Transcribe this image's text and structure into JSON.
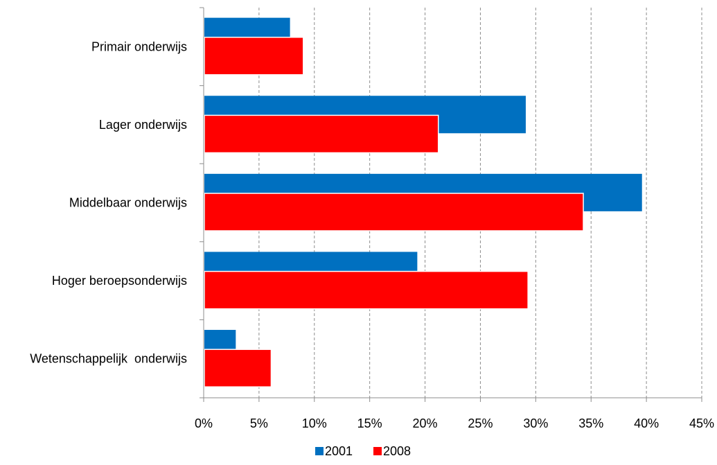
{
  "chart_data": {
    "type": "bar",
    "orientation": "horizontal",
    "categories": [
      "Primair onderwijs",
      "Lager onderwijs",
      "Middelbaar onderwijs",
      "Hoger beroepsonderwijs",
      "Wetenschappelijk  onderwijs"
    ],
    "series": [
      {
        "name": "2001",
        "color": "#0070C0",
        "values": [
          7.8,
          29.1,
          39.6,
          19.3,
          2.9
        ]
      },
      {
        "name": "2008",
        "color": "#FF0000",
        "values": [
          9.0,
          21.2,
          34.3,
          29.3,
          6.1
        ]
      }
    ],
    "xlim": [
      0,
      45
    ],
    "x_ticks": [
      0,
      5,
      10,
      15,
      20,
      25,
      30,
      35,
      40,
      45
    ],
    "x_tick_labels": [
      "0%",
      "5%",
      "10%",
      "15%",
      "20%",
      "25%",
      "30%",
      "35%",
      "40%",
      "45%"
    ],
    "grid": "vertical-dashed",
    "legend": {
      "placement": "bottom",
      "entries": [
        "2001",
        "2008"
      ]
    },
    "title": "",
    "xlabel": "",
    "ylabel": ""
  }
}
